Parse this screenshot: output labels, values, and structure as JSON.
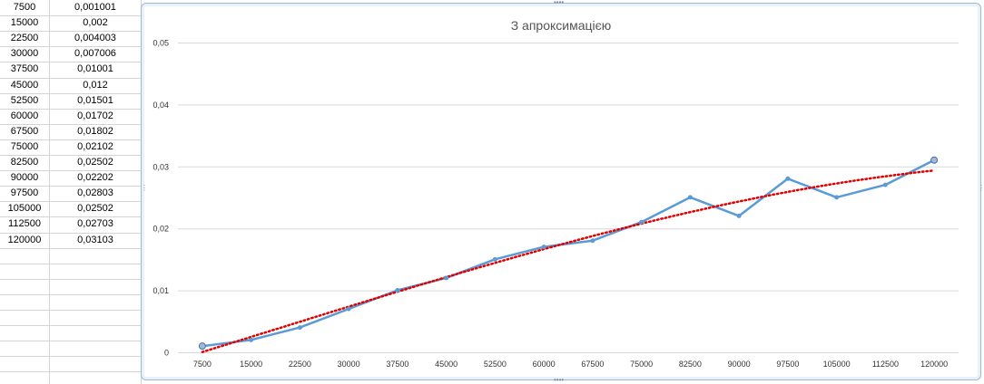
{
  "sheet": {
    "rows": [
      [
        "7500",
        "0,001001"
      ],
      [
        "15000",
        "0,002"
      ],
      [
        "22500",
        "0,004003"
      ],
      [
        "30000",
        "0,007006"
      ],
      [
        "37500",
        "0,01001"
      ],
      [
        "45000",
        "0,012"
      ],
      [
        "52500",
        "0,01501"
      ],
      [
        "60000",
        "0,01702"
      ],
      [
        "67500",
        "0,01802"
      ],
      [
        "75000",
        "0,02102"
      ],
      [
        "82500",
        "0,02502"
      ],
      [
        "90000",
        "0,02202"
      ],
      [
        "97500",
        "0,02803"
      ],
      [
        "105000",
        "0,02502"
      ],
      [
        "112500",
        "0,02703"
      ],
      [
        "120000",
        "0,03103"
      ]
    ]
  },
  "colors": {
    "series_line": "#5b9bd5",
    "trendline": "#e00000",
    "gridline": "#d9d9d9",
    "chart_border": "#9bb9d8"
  },
  "chart_data": {
    "type": "line",
    "title": "З апроксимацією",
    "categories": [
      "7500",
      "15000",
      "22500",
      "30000",
      "37500",
      "45000",
      "52500",
      "60000",
      "67500",
      "75000",
      "82500",
      "90000",
      "97500",
      "105000",
      "112500",
      "120000"
    ],
    "series": [
      {
        "values": [
          0.001001,
          0.002,
          0.004003,
          0.007006,
          0.01001,
          0.012,
          0.01501,
          0.01702,
          0.01802,
          0.02102,
          0.02502,
          0.02202,
          0.02803,
          0.02502,
          0.02703,
          0.03103
        ]
      }
    ],
    "trendline": {
      "style": "dotted",
      "type": "polynomial"
    },
    "ylim": [
      0,
      0.05
    ],
    "yticks": [
      "0",
      "0,01",
      "0,02",
      "0,03",
      "0,04",
      "0,05"
    ],
    "grid": true,
    "legend": "none"
  }
}
